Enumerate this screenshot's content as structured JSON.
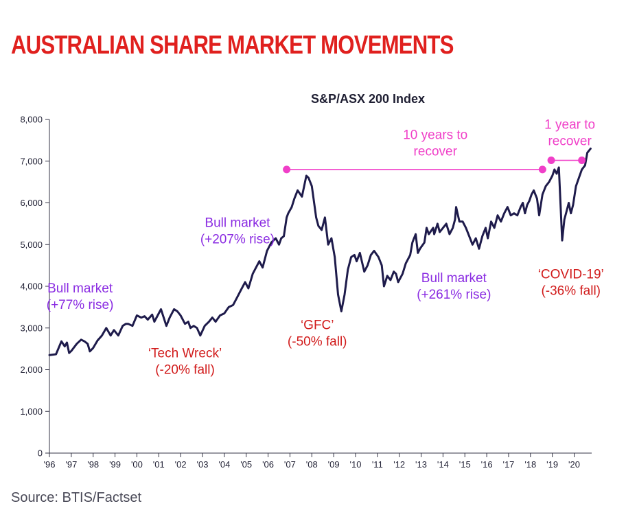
{
  "header": {
    "title": "AUSTRALIAN SHARE MARKET MOVEMENTS"
  },
  "footer": {
    "source": "Source: BTIS/Factset"
  },
  "colors": {
    "title_red": "#e0201e",
    "line_navy": "#1e1b4b",
    "bull_purple": "#8a2be2",
    "bear_red": "#d11a1a",
    "recover_pink": "#f03fc8",
    "axis": "#333344"
  },
  "chart_data": {
    "type": "line",
    "title": "S&P/ASX 200 Index",
    "xlabel": "",
    "ylabel": "",
    "ylim": [
      0,
      8000
    ],
    "xlim": [
      1996,
      2020.8
    ],
    "grid": false,
    "y_ticks": [
      0,
      1000,
      2000,
      3000,
      4000,
      5000,
      6000,
      7000,
      8000
    ],
    "y_tick_labels": [
      "0",
      "1,000",
      "2,000",
      "3,000",
      "4,000",
      "5,000",
      "6,000",
      "7,000",
      "8,000"
    ],
    "x_ticks": [
      1996,
      1997,
      1998,
      1999,
      2000,
      2001,
      2002,
      2003,
      2004,
      2005,
      2006,
      2007,
      2008,
      2009,
      2010,
      2011,
      2012,
      2013,
      2014,
      2015,
      2016,
      2017,
      2018,
      2019,
      2020
    ],
    "x_tick_labels": [
      "'96",
      "'97",
      "'98",
      "'99",
      "'00",
      "'01",
      "'02",
      "'03",
      "'04",
      "'05",
      "'06",
      "'07",
      "'08",
      "'09",
      "'10",
      "'11",
      "'12",
      "'13",
      "'14",
      "'15",
      "'16",
      "'17",
      "'18",
      "'19",
      "'20"
    ],
    "series": [
      {
        "x": [
          1996.0,
          1996.3,
          1996.55,
          1996.7,
          1996.8,
          1996.9,
          1997.0,
          1997.25,
          1997.45,
          1997.6,
          1997.75,
          1997.85,
          1998.0,
          1998.2,
          1998.4,
          1998.6,
          1998.8,
          1998.95,
          1999.15,
          1999.35,
          1999.5,
          1999.6,
          1999.8,
          2000.0,
          2000.2,
          2000.35,
          2000.5,
          2000.7,
          2000.8,
          2000.95,
          2001.1,
          2001.35,
          2001.5,
          2001.7,
          2001.85,
          2002.0,
          2002.2,
          2002.35,
          2002.45,
          2002.6,
          2002.75,
          2002.9,
          2003.1,
          2003.3,
          2003.45,
          2003.6,
          2003.8,
          2004.0,
          2004.2,
          2004.4,
          2004.6,
          2004.75,
          2004.95,
          2005.1,
          2005.3,
          2005.45,
          2005.6,
          2005.75,
          2005.95,
          2006.15,
          2006.35,
          2006.5,
          2006.6,
          2006.72,
          2006.85,
          2006.92,
          2007.08,
          2007.2,
          2007.35,
          2007.55,
          2007.75,
          2007.85,
          2008.0,
          2008.2,
          2008.3,
          2008.45,
          2008.6,
          2008.75,
          2008.9,
          2009.05,
          2009.2,
          2009.35,
          2009.5,
          2009.65,
          2009.8,
          2009.95,
          2010.05,
          2010.2,
          2010.4,
          2010.55,
          2010.7,
          2010.85,
          2011.05,
          2011.2,
          2011.3,
          2011.45,
          2011.6,
          2011.75,
          2011.85,
          2011.95,
          2012.15,
          2012.3,
          2012.5,
          2012.6,
          2012.75,
          2012.85,
          2012.95,
          2013.15,
          2013.25,
          2013.35,
          2013.55,
          2013.6,
          2013.75,
          2013.85,
          2014.0,
          2014.15,
          2014.3,
          2014.45,
          2014.55,
          2014.6,
          2014.75,
          2014.9,
          2015.05,
          2015.2,
          2015.35,
          2015.5,
          2015.65,
          2015.8,
          2015.95,
          2016.05,
          2016.2,
          2016.35,
          2016.5,
          2016.65,
          2016.8,
          2016.95,
          2017.1,
          2017.25,
          2017.4,
          2017.55,
          2017.65,
          2017.75,
          2017.85,
          2017.95,
          2018.05,
          2018.15,
          2018.3,
          2018.4,
          2018.55,
          2018.7,
          2018.85,
          2019.0,
          2019.1,
          2019.2,
          2019.3,
          2019.45,
          2019.55,
          2019.65,
          2019.75,
          2019.85,
          2019.95,
          2020.08,
          2020.18,
          2020.35,
          2020.5,
          2020.6,
          2020.75
        ],
        "values": [
          2350,
          2370,
          2680,
          2560,
          2650,
          2400,
          2450,
          2620,
          2720,
          2680,
          2620,
          2440,
          2520,
          2700,
          2820,
          3000,
          2820,
          2950,
          2820,
          3050,
          3100,
          3100,
          3050,
          3300,
          3250,
          3280,
          3200,
          3320,
          3150,
          3300,
          3450,
          3050,
          3250,
          3450,
          3400,
          3300,
          3100,
          3150,
          3000,
          3050,
          3000,
          2820,
          3050,
          3150,
          3250,
          3150,
          3300,
          3350,
          3500,
          3550,
          3750,
          3900,
          4100,
          3950,
          4300,
          4450,
          4600,
          4450,
          4850,
          5050,
          5150,
          5000,
          5150,
          5200,
          5650,
          5750,
          5900,
          6100,
          6300,
          6150,
          6650,
          6600,
          6400,
          5650,
          5450,
          5350,
          5650,
          5000,
          5150,
          4700,
          3800,
          3400,
          3800,
          4400,
          4700,
          4750,
          4600,
          4800,
          4350,
          4500,
          4750,
          4850,
          4700,
          4500,
          4000,
          4250,
          4150,
          4350,
          4300,
          4100,
          4300,
          4550,
          4750,
          5050,
          5250,
          4800,
          4900,
          5050,
          5400,
          5250,
          5400,
          5250,
          5500,
          5300,
          5400,
          5500,
          5250,
          5400,
          5600,
          5900,
          5550,
          5550,
          5400,
          5200,
          5000,
          5150,
          4900,
          5200,
          5400,
          5150,
          5550,
          5400,
          5700,
          5550,
          5750,
          5900,
          5700,
          5750,
          5700,
          5900,
          6000,
          5750,
          5950,
          6050,
          6200,
          6300,
          6100,
          5700,
          6200,
          6400,
          6500,
          6650,
          6800,
          6700,
          6850,
          5100,
          5600,
          5800,
          6000,
          5750,
          5950,
          6400,
          6550,
          6800,
          6900,
          7200,
          7300
        ]
      }
    ],
    "annotations": [
      {
        "text": [
          "Bull market",
          "(+77% rise)"
        ],
        "kind": "bull",
        "x": 1997.4,
        "y": 3850
      },
      {
        "text": [
          "‘Tech Wreck’",
          "(-20% fall)"
        ],
        "kind": "bear",
        "x": 2002.2,
        "y": 2300
      },
      {
        "text": [
          "Bull market",
          "(+207% rise)"
        ],
        "kind": "bull",
        "x": 2004.6,
        "y": 5420
      },
      {
        "text": [
          "‘GFC’",
          "(-50% fall)"
        ],
        "kind": "bear",
        "x": 2008.25,
        "y": 2970
      },
      {
        "text": [
          "Bull market",
          "(+261% rise)"
        ],
        "kind": "bull",
        "x": 2014.5,
        "y": 4100
      },
      {
        "text": [
          "‘COVID-19’",
          "(-36% fall)"
        ],
        "kind": "bear",
        "x": 2019.85,
        "y": 4190
      },
      {
        "text": [
          "10 years to",
          "recover"
        ],
        "kind": "recover",
        "x": 2013.65,
        "y": 7530
      },
      {
        "text": [
          "1 year to",
          "recover"
        ],
        "kind": "recover",
        "x": 2019.8,
        "y": 7780
      }
    ],
    "recovery_lines": [
      {
        "x1": 2006.85,
        "x2": 2018.55,
        "y": 6800
      },
      {
        "x1": 2018.95,
        "x2": 2020.35,
        "y": 7020
      }
    ]
  }
}
